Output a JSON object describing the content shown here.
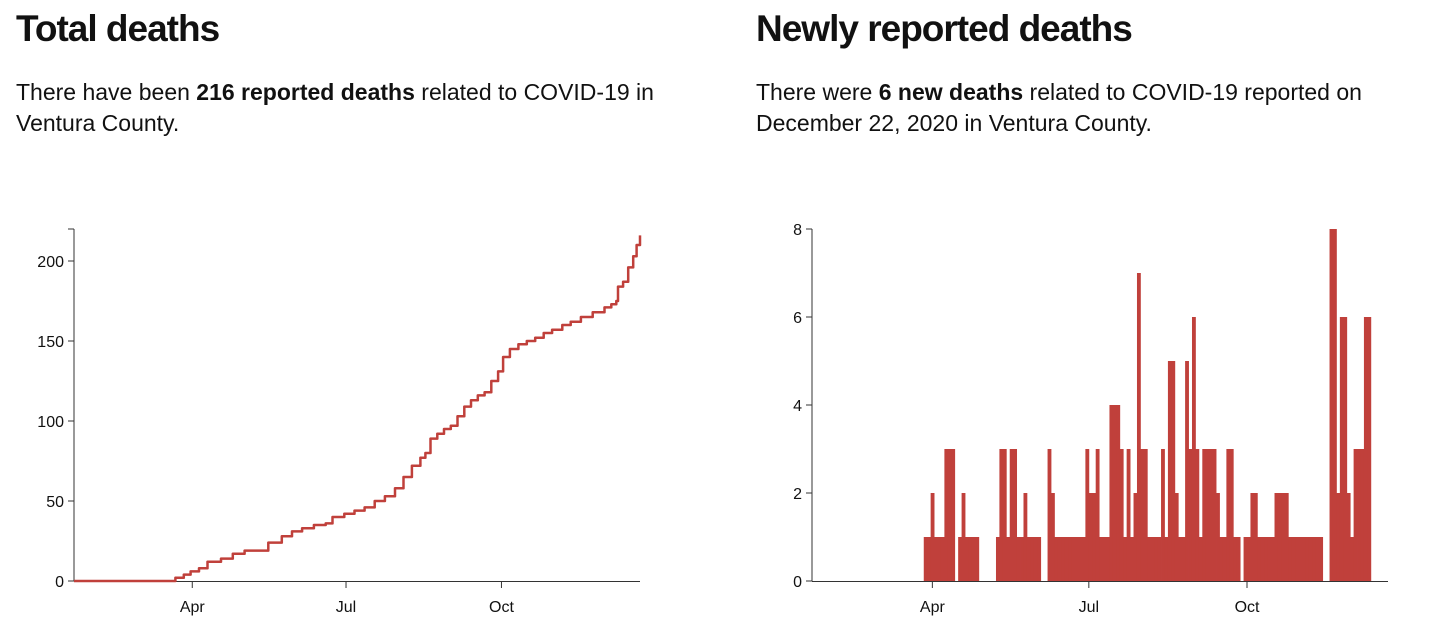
{
  "left": {
    "title": "Total deaths",
    "summary_pre": "There have been ",
    "summary_bold": "216 reported deaths",
    "summary_post": " related to COVID-19 in Ventura County."
  },
  "right": {
    "title": "Newly reported deaths",
    "summary_pre": "There were ",
    "summary_bold": "6 new deaths",
    "summary_post": " related to COVID-19 reported on December 22, 2020 in Ventura County."
  },
  "colors": {
    "series": "#c0403b",
    "axis": "#333333"
  },
  "chart_data": [
    {
      "type": "line",
      "title": "Total deaths",
      "xlabel": "",
      "ylabel": "",
      "x_range": [
        "2020-01-22",
        "2020-12-22"
      ],
      "ylim": [
        0,
        220
      ],
      "x_ticks": [
        {
          "date": "2020-04-01",
          "label": "Apr"
        },
        {
          "date": "2020-07-01",
          "label": "Jul"
        },
        {
          "date": "2020-10-01",
          "label": "Oct"
        }
      ],
      "y_ticks": [
        0,
        50,
        100,
        150,
        200
      ],
      "grid": false,
      "series": [
        {
          "points": [
            [
              "2020-01-22",
              0
            ],
            [
              "2020-03-18",
              0
            ],
            [
              "2020-03-22",
              2
            ],
            [
              "2020-03-27",
              4
            ],
            [
              "2020-03-31",
              6
            ],
            [
              "2020-04-05",
              8
            ],
            [
              "2020-04-10",
              12
            ],
            [
              "2020-04-18",
              14
            ],
            [
              "2020-04-25",
              17
            ],
            [
              "2020-05-02",
              19
            ],
            [
              "2020-05-12",
              19
            ],
            [
              "2020-05-16",
              24
            ],
            [
              "2020-05-24",
              28
            ],
            [
              "2020-05-30",
              31
            ],
            [
              "2020-06-05",
              33
            ],
            [
              "2020-06-12",
              35
            ],
            [
              "2020-06-19",
              36
            ],
            [
              "2020-06-23",
              40
            ],
            [
              "2020-06-30",
              42
            ],
            [
              "2020-07-06",
              44
            ],
            [
              "2020-07-12",
              46
            ],
            [
              "2020-07-18",
              50
            ],
            [
              "2020-07-24",
              53
            ],
            [
              "2020-07-30",
              58
            ],
            [
              "2020-08-04",
              65
            ],
            [
              "2020-08-09",
              72
            ],
            [
              "2020-08-14",
              77
            ],
            [
              "2020-08-17",
              80
            ],
            [
              "2020-08-20",
              89
            ],
            [
              "2020-08-24",
              92
            ],
            [
              "2020-08-28",
              95
            ],
            [
              "2020-09-01",
              97
            ],
            [
              "2020-09-05",
              103
            ],
            [
              "2020-09-09",
              109
            ],
            [
              "2020-09-13",
              113
            ],
            [
              "2020-09-17",
              116
            ],
            [
              "2020-09-21",
              118
            ],
            [
              "2020-09-25",
              125
            ],
            [
              "2020-09-29",
              131
            ],
            [
              "2020-10-02",
              140
            ],
            [
              "2020-10-06",
              145
            ],
            [
              "2020-10-11",
              148
            ],
            [
              "2020-10-16",
              150
            ],
            [
              "2020-10-21",
              152
            ],
            [
              "2020-10-26",
              155
            ],
            [
              "2020-10-31",
              157
            ],
            [
              "2020-11-06",
              160
            ],
            [
              "2020-11-11",
              162
            ],
            [
              "2020-11-17",
              165
            ],
            [
              "2020-11-24",
              168
            ],
            [
              "2020-12-01",
              171
            ],
            [
              "2020-12-05",
              173
            ],
            [
              "2020-12-08",
              175
            ],
            [
              "2020-12-09",
              184
            ],
            [
              "2020-12-12",
              187
            ],
            [
              "2020-12-15",
              196
            ],
            [
              "2020-12-18",
              203
            ],
            [
              "2020-12-20",
              210
            ],
            [
              "2020-12-22",
              216
            ]
          ]
        }
      ]
    },
    {
      "type": "bar",
      "title": "Newly reported deaths",
      "xlabel": "",
      "ylabel": "",
      "x_range": [
        "2020-01-22",
        "2020-12-22"
      ],
      "ylim": [
        0,
        8
      ],
      "x_ticks": [
        {
          "date": "2020-04-01",
          "label": "Apr"
        },
        {
          "date": "2020-07-01",
          "label": "Jul"
        },
        {
          "date": "2020-10-01",
          "label": "Oct"
        }
      ],
      "y_ticks": [
        0,
        2,
        4,
        6,
        8
      ],
      "grid": false,
      "bar_width_days": 2,
      "series": [
        {
          "values": [
            [
              "2020-03-27",
              1
            ],
            [
              "2020-03-29",
              1
            ],
            [
              "2020-03-31",
              2
            ],
            [
              "2020-04-02",
              1
            ],
            [
              "2020-04-04",
              1
            ],
            [
              "2020-04-06",
              1
            ],
            [
              "2020-04-08",
              3
            ],
            [
              "2020-04-10",
              3
            ],
            [
              "2020-04-12",
              3
            ],
            [
              "2020-04-14",
              0
            ],
            [
              "2020-04-16",
              1
            ],
            [
              "2020-04-18",
              2
            ],
            [
              "2020-04-20",
              1
            ],
            [
              "2020-04-22",
              1
            ],
            [
              "2020-04-24",
              1
            ],
            [
              "2020-04-26",
              1
            ],
            [
              "2020-04-28",
              0
            ],
            [
              "2020-04-30",
              0
            ],
            [
              "2020-05-02",
              0
            ],
            [
              "2020-05-04",
              0
            ],
            [
              "2020-05-06",
              0
            ],
            [
              "2020-05-08",
              1
            ],
            [
              "2020-05-10",
              3
            ],
            [
              "2020-05-12",
              3
            ],
            [
              "2020-05-14",
              1
            ],
            [
              "2020-05-16",
              3
            ],
            [
              "2020-05-18",
              3
            ],
            [
              "2020-05-20",
              1
            ],
            [
              "2020-05-22",
              1
            ],
            [
              "2020-05-24",
              2
            ],
            [
              "2020-05-26",
              1
            ],
            [
              "2020-05-28",
              1
            ],
            [
              "2020-05-30",
              1
            ],
            [
              "2020-06-01",
              1
            ],
            [
              "2020-06-03",
              0
            ],
            [
              "2020-06-05",
              0
            ],
            [
              "2020-06-07",
              3
            ],
            [
              "2020-06-09",
              2
            ],
            [
              "2020-06-11",
              1
            ],
            [
              "2020-06-13",
              1
            ],
            [
              "2020-06-15",
              1
            ],
            [
              "2020-06-17",
              1
            ],
            [
              "2020-06-19",
              1
            ],
            [
              "2020-06-21",
              1
            ],
            [
              "2020-06-23",
              1
            ],
            [
              "2020-06-25",
              1
            ],
            [
              "2020-06-27",
              1
            ],
            [
              "2020-06-29",
              3
            ],
            [
              "2020-07-01",
              2
            ],
            [
              "2020-07-03",
              2
            ],
            [
              "2020-07-05",
              3
            ],
            [
              "2020-07-07",
              1
            ],
            [
              "2020-07-09",
              1
            ],
            [
              "2020-07-11",
              1
            ],
            [
              "2020-07-13",
              4
            ],
            [
              "2020-07-15",
              4
            ],
            [
              "2020-07-17",
              4
            ],
            [
              "2020-07-19",
              3
            ],
            [
              "2020-07-21",
              1
            ],
            [
              "2020-07-23",
              3
            ],
            [
              "2020-07-25",
              1
            ],
            [
              "2020-07-27",
              2
            ],
            [
              "2020-07-29",
              7
            ],
            [
              "2020-07-31",
              3
            ],
            [
              "2020-08-02",
              3
            ],
            [
              "2020-08-04",
              1
            ],
            [
              "2020-08-06",
              1
            ],
            [
              "2020-08-08",
              1
            ],
            [
              "2020-08-10",
              1
            ],
            [
              "2020-08-12",
              3
            ],
            [
              "2020-08-14",
              1
            ],
            [
              "2020-08-16",
              5
            ],
            [
              "2020-08-18",
              5
            ],
            [
              "2020-08-20",
              2
            ],
            [
              "2020-08-22",
              1
            ],
            [
              "2020-08-24",
              1
            ],
            [
              "2020-08-26",
              5
            ],
            [
              "2020-08-28",
              3
            ],
            [
              "2020-08-30",
              6
            ],
            [
              "2020-09-01",
              3
            ],
            [
              "2020-09-03",
              1
            ],
            [
              "2020-09-05",
              3
            ],
            [
              "2020-09-07",
              3
            ],
            [
              "2020-09-09",
              3
            ],
            [
              "2020-09-11",
              3
            ],
            [
              "2020-09-13",
              2
            ],
            [
              "2020-09-15",
              1
            ],
            [
              "2020-09-17",
              1
            ],
            [
              "2020-09-19",
              3
            ],
            [
              "2020-09-21",
              3
            ],
            [
              "2020-09-23",
              1
            ],
            [
              "2020-09-25",
              1
            ],
            [
              "2020-09-27",
              0
            ],
            [
              "2020-09-29",
              1
            ],
            [
              "2020-10-01",
              1
            ],
            [
              "2020-10-03",
              2
            ],
            [
              "2020-10-05",
              2
            ],
            [
              "2020-10-07",
              1
            ],
            [
              "2020-10-09",
              1
            ],
            [
              "2020-10-11",
              1
            ],
            [
              "2020-10-13",
              1
            ],
            [
              "2020-10-15",
              1
            ],
            [
              "2020-10-17",
              2
            ],
            [
              "2020-10-19",
              2
            ],
            [
              "2020-10-21",
              2
            ],
            [
              "2020-10-23",
              2
            ],
            [
              "2020-10-25",
              1
            ],
            [
              "2020-10-27",
              1
            ],
            [
              "2020-10-29",
              1
            ],
            [
              "2020-10-31",
              1
            ],
            [
              "2020-11-02",
              1
            ],
            [
              "2020-11-04",
              1
            ],
            [
              "2020-11-06",
              1
            ],
            [
              "2020-11-08",
              1
            ],
            [
              "2020-11-10",
              1
            ],
            [
              "2020-11-12",
              1
            ],
            [
              "2020-11-14",
              0
            ],
            [
              "2020-11-16",
              0
            ],
            [
              "2020-11-18",
              8
            ],
            [
              "2020-11-20",
              8
            ],
            [
              "2020-11-22",
              2
            ],
            [
              "2020-11-24",
              6
            ],
            [
              "2020-11-26",
              6
            ],
            [
              "2020-11-28",
              2
            ],
            [
              "2020-11-30",
              1
            ],
            [
              "2020-12-02",
              3
            ],
            [
              "2020-12-04",
              3
            ],
            [
              "2020-12-06",
              3
            ],
            [
              "2020-12-08",
              6
            ],
            [
              "2020-12-10",
              6
            ]
          ]
        }
      ]
    }
  ]
}
